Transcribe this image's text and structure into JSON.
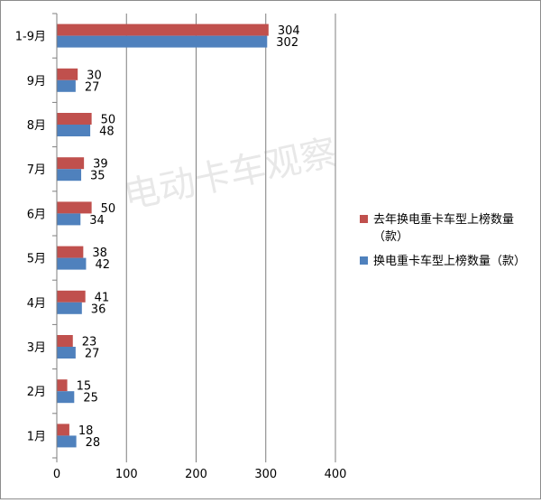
{
  "watermark": "电动卡车观察",
  "colors": {
    "last_year": "#c0504d",
    "this_year": "#4f81bd",
    "grid": "#7f7f7f",
    "axis": "#7f7f7f"
  },
  "chart_data": {
    "type": "bar",
    "orientation": "horizontal",
    "categories": [
      "1-9月",
      "9月",
      "8月",
      "7月",
      "6月",
      "5月",
      "4月",
      "3月",
      "2月",
      "1月"
    ],
    "series": [
      {
        "name": "去年换电重卡车型上榜数量（款）",
        "values": [
          304,
          30,
          50,
          39,
          50,
          38,
          41,
          23,
          15,
          18
        ]
      },
      {
        "name": "换电重卡车型上榜数量（款）",
        "values": [
          302,
          27,
          48,
          35,
          34,
          42,
          36,
          27,
          25,
          28
        ]
      }
    ],
    "xlim": [
      0,
      400
    ],
    "xticks": [
      0,
      100,
      200,
      300,
      400
    ],
    "grid": true,
    "legend_position": "right"
  }
}
